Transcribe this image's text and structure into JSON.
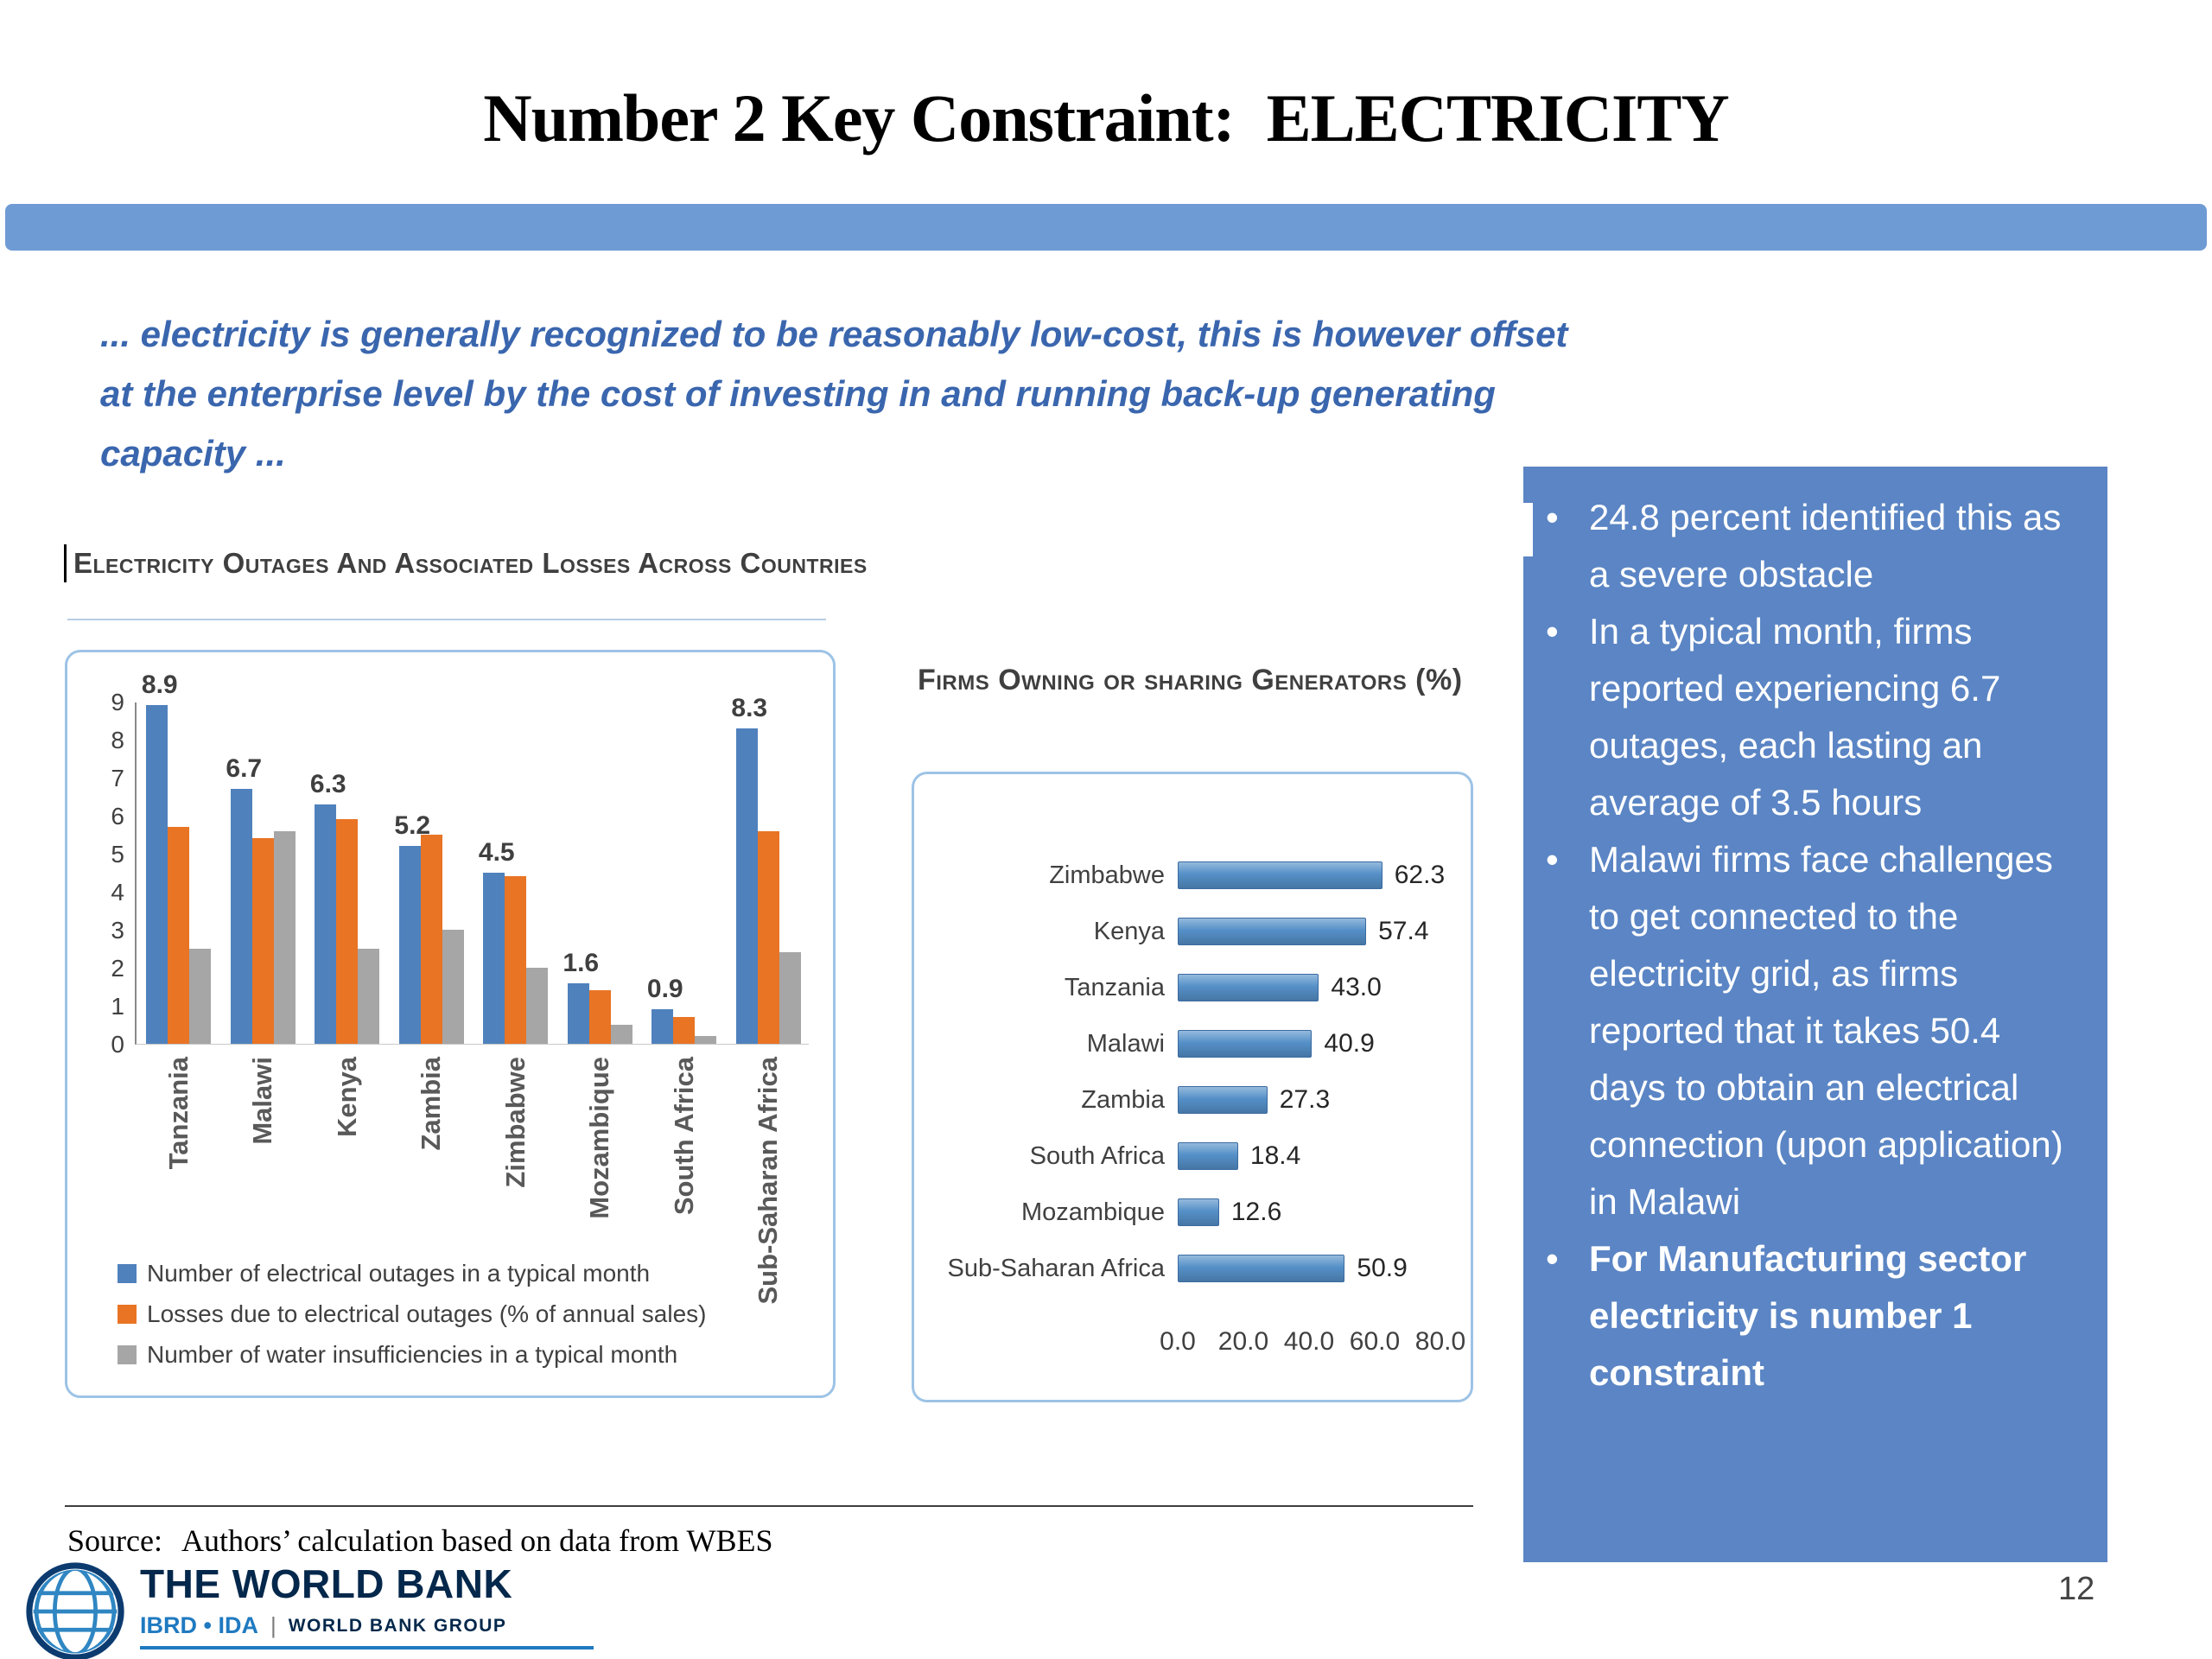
{
  "slide": {
    "title": "Number 2 Key Constraint:  ELECTRICITY",
    "intro_lines": [
      "... electricity is generally recognized to be reasonably low-cost, this is however offset",
      "at the enterprise level by the cost of investing in and running back-up generating",
      "capacity ..."
    ],
    "page_number": "12"
  },
  "source": {
    "label": "Source:",
    "text": "Authors’ calculation based on data from WBES"
  },
  "footer_logo": {
    "name": "THE WORLD BANK",
    "sub_left": "IBRD • IDA",
    "separator": "|",
    "sub_right": "WORLD BANK GROUP"
  },
  "callout": {
    "background": "#5b85c4",
    "bullets": [
      {
        "text": "24.8 percent identified this as a severe obstacle",
        "bold": false
      },
      {
        "text": "In a typical month, firms reported experiencing 6.7 outages, each lasting an average of 3.5 hours",
        "bold": false
      },
      {
        "text": "Malawi firms face challenges to get connected to the electricity grid, as firms reported that it takes 50.4 days to obtain an electrical connection (upon application) in Malawi",
        "bold": false
      },
      {
        "text": "For Manufacturing sector electricity is number 1 constraint",
        "bold": true
      }
    ]
  },
  "chart_data": [
    {
      "type": "bar",
      "title": "Electricity Outages And Associated Losses Across Countries",
      "categories": [
        "Tanzania",
        "Malawi",
        "Kenya",
        "Zambia",
        "Zimbabwe",
        "Mozambique",
        "South Africa",
        "Sub-Saharan Africa"
      ],
      "series": [
        {
          "name": "Number of electrical outages in a typical month",
          "color": "#4f81bd",
          "values": [
            8.9,
            6.7,
            6.3,
            5.2,
            4.5,
            1.6,
            0.9,
            8.3
          ]
        },
        {
          "name": "Losses due to electrical outages (% of annual sales)",
          "color": "#e87424",
          "values": [
            5.7,
            5.4,
            5.9,
            5.5,
            4.4,
            1.4,
            0.7,
            5.6
          ]
        },
        {
          "name": "Number of water insufficiencies in a typical month",
          "color": "#a6a6a6",
          "values": [
            2.5,
            5.6,
            2.5,
            3.0,
            2.0,
            0.5,
            0.2,
            2.4
          ]
        }
      ],
      "value_labels": [
        "8.9",
        "6.7",
        "6.3",
        "5.2",
        "4.5",
        "1.6",
        "0.9",
        "8.3"
      ],
      "ylim": [
        0,
        9
      ],
      "yticks": [
        0,
        1,
        2,
        3,
        4,
        5,
        6,
        7,
        8,
        9
      ],
      "grid": false,
      "legend_position": "bottom-left"
    },
    {
      "type": "bar-horizontal",
      "title": "Firms Owning or sharing Generators (%)",
      "categories": [
        "Zimbabwe",
        "Kenya",
        "Tanzania",
        "Malawi",
        "Zambia",
        "South Africa",
        "Mozambique",
        "Sub-Saharan Africa"
      ],
      "values": [
        62.3,
        57.4,
        43.0,
        40.9,
        27.3,
        18.4,
        12.6,
        50.9
      ],
      "xlim": [
        0,
        80
      ],
      "xticks": [
        0,
        20,
        40,
        60,
        80
      ],
      "bar_color": "#5590c8",
      "grid": false
    }
  ],
  "colors": {
    "accent_band": "#6f9bd4",
    "intro_text": "#3a66ae",
    "chart_border": "#9dc3e6",
    "callout_background": "#5b85c4"
  }
}
